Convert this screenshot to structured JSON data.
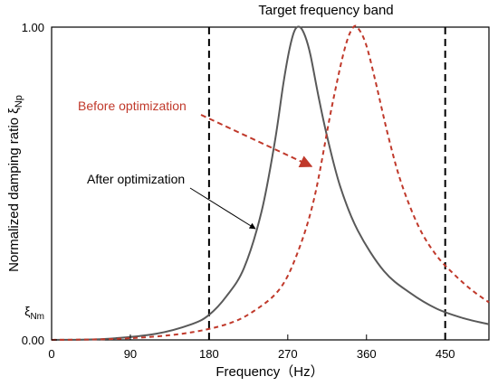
{
  "chart_data": {
    "type": "line",
    "title": "",
    "xlabel": "Frequency（Hz）",
    "ylabel": "Normalized damping ratio ξ",
    "ylabel_sub": "Np",
    "xlim": [
      0,
      500
    ],
    "ylim": [
      0,
      1.0
    ],
    "x_ticks": [
      0,
      90,
      180,
      270,
      360,
      450
    ],
    "x_tick_labels": [
      "0",
      "90",
      "180",
      "270",
      "360",
      "450"
    ],
    "y_tick_labels": [
      {
        "value": 1.0,
        "label": "1.00"
      },
      {
        "value": 0.0,
        "label": "0.00"
      }
    ],
    "y_symbol_label": {
      "value": 0.09,
      "main": "ξ",
      "sub": "Nm"
    },
    "grid": false,
    "band": {
      "label": "Target frequency band",
      "lines": [
        180,
        450
      ]
    },
    "series": [
      {
        "style": "solid",
        "color": "#595959",
        "x": [
          0,
          60,
          120,
          160,
          180,
          200,
          220,
          240,
          255,
          265,
          272,
          278,
          284,
          290,
          296,
          305,
          315,
          330,
          350,
          380,
          410,
          440,
          470,
          500
        ],
        "y": [
          0.0,
          0.003,
          0.02,
          0.05,
          0.08,
          0.14,
          0.23,
          0.41,
          0.63,
          0.82,
          0.93,
          0.99,
          1.0,
          0.97,
          0.91,
          0.78,
          0.65,
          0.49,
          0.35,
          0.22,
          0.15,
          0.1,
          0.07,
          0.05
        ]
      },
      {
        "style": "dashed",
        "color": "#c0392b",
        "x": [
          0,
          80,
          150,
          200,
          230,
          260,
          280,
          300,
          320,
          335,
          345,
          352,
          360,
          370,
          385,
          400,
          420,
          440,
          460,
          480,
          500
        ],
        "y": [
          0.0,
          0.004,
          0.02,
          0.05,
          0.09,
          0.16,
          0.27,
          0.45,
          0.74,
          0.93,
          1.0,
          0.99,
          0.94,
          0.83,
          0.65,
          0.5,
          0.36,
          0.27,
          0.21,
          0.16,
          0.12
        ]
      }
    ],
    "annotations": [
      {
        "text": "Before optimization",
        "color": "#c0392b"
      },
      {
        "text": "After optimization",
        "color": "#000000"
      }
    ]
  }
}
